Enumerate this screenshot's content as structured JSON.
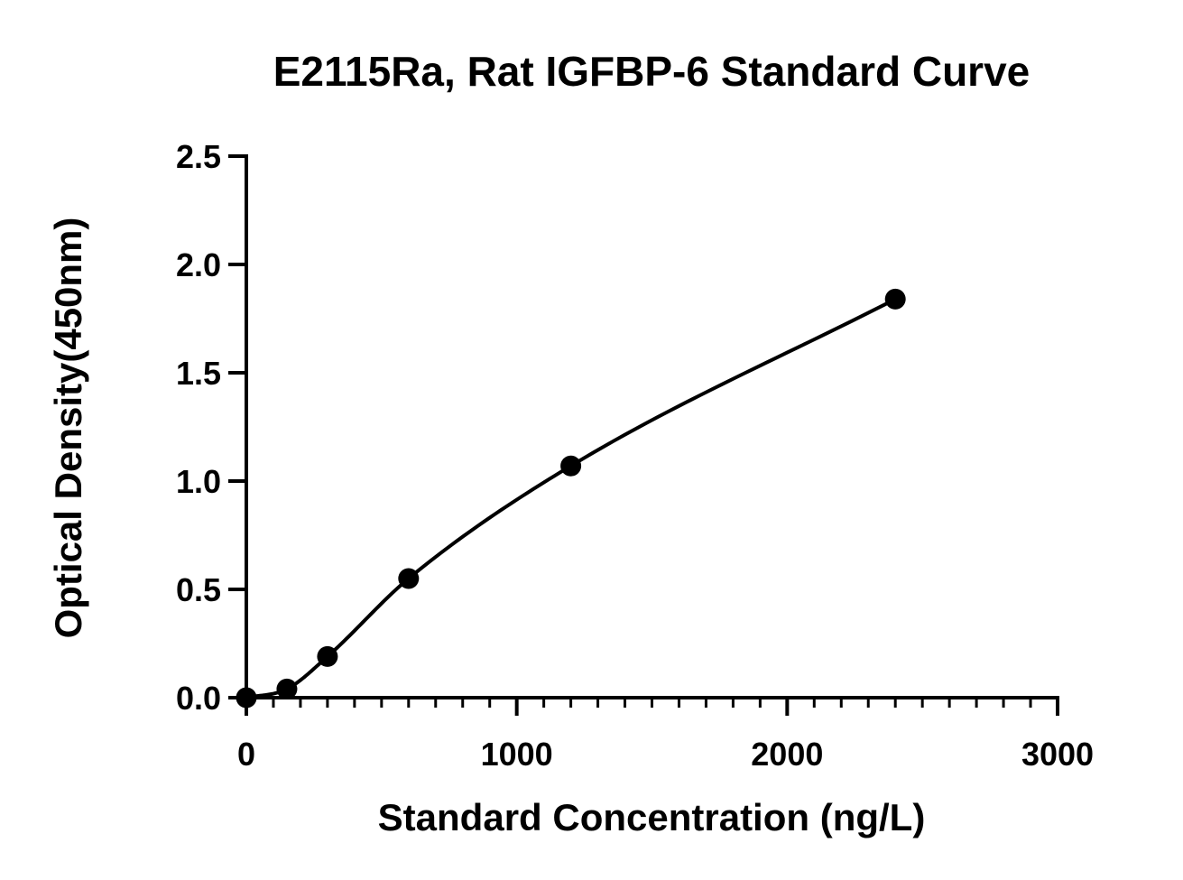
{
  "chart_data": {
    "type": "scatter",
    "title": "E2115Ra, Rat IGFBP-6 Standard Curve",
    "xlabel": "Standard Concentration (ng/L)",
    "ylabel": "Optical Density(450nm)",
    "xlim": [
      0,
      3000
    ],
    "ylim": [
      0,
      2.5
    ],
    "x_ticks": [
      "0",
      "1000",
      "2000",
      "3000"
    ],
    "y_ticks": [
      "0.0",
      "0.5",
      "1.0",
      "1.5",
      "2.0",
      "2.5"
    ],
    "x_tick_values": [
      0,
      1000,
      2000,
      3000
    ],
    "y_tick_values": [
      0,
      0.5,
      1.0,
      1.5,
      2.0,
      2.5
    ],
    "x_minor_step": 100,
    "grid": false,
    "legend": "none",
    "series": [
      {
        "x": [
          0,
          150,
          300,
          600,
          1200,
          2400
        ],
        "y": [
          0.0,
          0.04,
          0.19,
          0.55,
          1.07,
          1.84
        ]
      }
    ],
    "fit_curve": true,
    "colors": {
      "points": "#000000",
      "curve": "#000000",
      "axes": "#000000"
    }
  }
}
